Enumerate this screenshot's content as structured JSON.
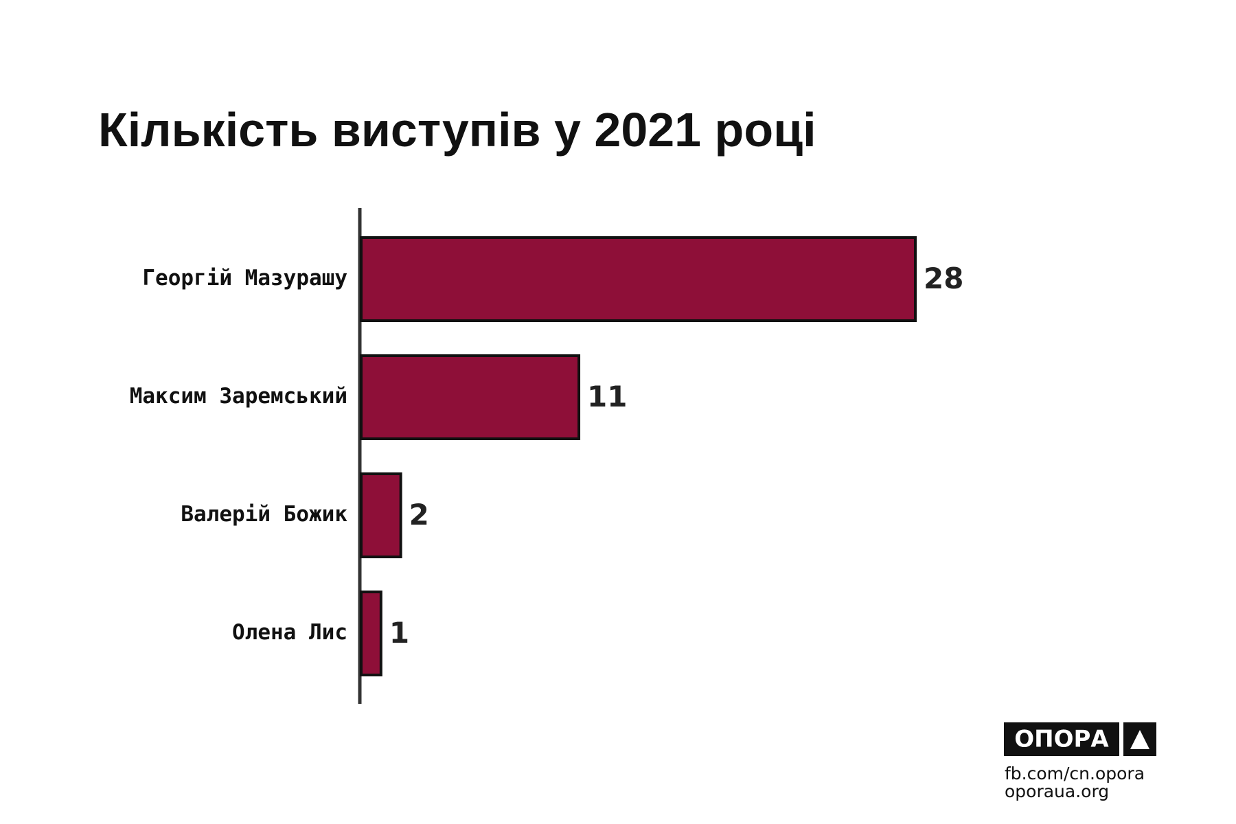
{
  "chart_data": {
    "type": "bar",
    "orientation": "horizontal",
    "title": "Кількість виступів у 2021 році",
    "categories": [
      "Георгій Мазурашу",
      "Максим Заремський",
      "Валерій Божик",
      "Олена Лис"
    ],
    "values": [
      28,
      11,
      2,
      1
    ],
    "color": "#8e0f38"
  },
  "footer": {
    "logo": "ОПОРА",
    "links": [
      "fb.com/cn.opora",
      "oporaua.org"
    ]
  }
}
